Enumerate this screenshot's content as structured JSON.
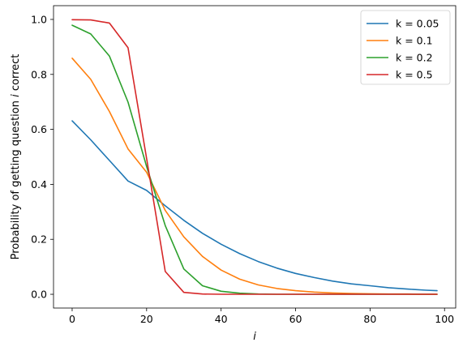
{
  "chart_data": {
    "type": "line",
    "xlabel": "i",
    "ylabel_parts": [
      "Probability of getting question ",
      "i",
      " correct"
    ],
    "xlim": [
      -5,
      103
    ],
    "ylim": [
      -0.05,
      1.05
    ],
    "xticks": [
      0,
      20,
      40,
      60,
      80,
      100
    ],
    "yticks": [
      0.0,
      0.2,
      0.4,
      0.6,
      0.8,
      1.0
    ],
    "ytick_labels": [
      "0.0",
      "0.2",
      "0.4",
      "0.6",
      "0.8",
      "1.0"
    ],
    "grid": false,
    "legend_placement": "top-right",
    "x": [
      0,
      5,
      10,
      15,
      20,
      25,
      30,
      35,
      40,
      45,
      50,
      55,
      60,
      65,
      70,
      75,
      80,
      85,
      90,
      95,
      98
    ],
    "series": [
      {
        "name": "k = 0.05",
        "color": "#1f77b4",
        "values": [
          0.631,
          0.562,
          0.487,
          0.412,
          0.378,
          0.322,
          0.269,
          0.222,
          0.182,
          0.148,
          0.119,
          0.095,
          0.076,
          0.061,
          0.048,
          0.038,
          0.031,
          0.024,
          0.019,
          0.015,
          0.013
        ]
      },
      {
        "name": "k = 0.1",
        "color": "#ff7f0e",
        "values": [
          0.859,
          0.782,
          0.665,
          0.529,
          0.444,
          0.305,
          0.209,
          0.138,
          0.088,
          0.055,
          0.034,
          0.021,
          0.013,
          0.008,
          0.005,
          0.003,
          0.002,
          0.001,
          0.001,
          0.0,
          0.0
        ]
      },
      {
        "name": "k = 0.2",
        "color": "#2ca02c",
        "values": [
          0.979,
          0.947,
          0.867,
          0.699,
          0.465,
          0.25,
          0.092,
          0.031,
          0.011,
          0.004,
          0.001,
          0.0,
          0.0,
          0.0,
          0.0,
          0.0,
          0.0,
          0.0,
          0.0,
          0.0,
          0.0
        ]
      },
      {
        "name": "k = 0.5",
        "color": "#d62728",
        "values": [
          0.999,
          0.998,
          0.987,
          0.897,
          0.494,
          0.083,
          0.007,
          0.001,
          0.0,
          0.0,
          0.0,
          0.0,
          0.0,
          0.0,
          0.0,
          0.0,
          0.0,
          0.0,
          0.0,
          0.0,
          0.0
        ]
      }
    ]
  }
}
